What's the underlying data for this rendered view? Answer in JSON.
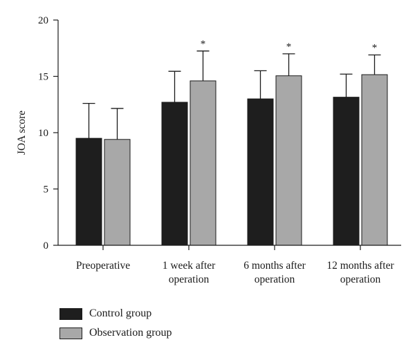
{
  "chart_data": {
    "type": "bar",
    "categories": [
      [
        "Preoperative"
      ],
      [
        "1 week after",
        "operation"
      ],
      [
        "6 months after",
        "operation"
      ],
      [
        "12 months after",
        "operation"
      ]
    ],
    "series": [
      {
        "name": "Control group",
        "color": "#1e1e1e",
        "values": [
          9.5,
          12.7,
          13.0,
          13.15
        ],
        "error": [
          3.1,
          2.75,
          2.5,
          2.05
        ],
        "significance": [
          "",
          "",
          "",
          ""
        ]
      },
      {
        "name": "Observation group",
        "color": "#a8a8a8",
        "values": [
          9.4,
          14.6,
          15.05,
          15.15
        ],
        "error": [
          2.75,
          2.65,
          1.95,
          1.75
        ],
        "significance": [
          "",
          "*",
          "*",
          "*"
        ]
      }
    ],
    "ylabel": "JOA score",
    "xlabel": "",
    "ylim": [
      0,
      20
    ],
    "yticks": [
      0,
      5,
      10,
      15,
      20
    ],
    "grid": false,
    "legend_position": "bottom-left"
  }
}
